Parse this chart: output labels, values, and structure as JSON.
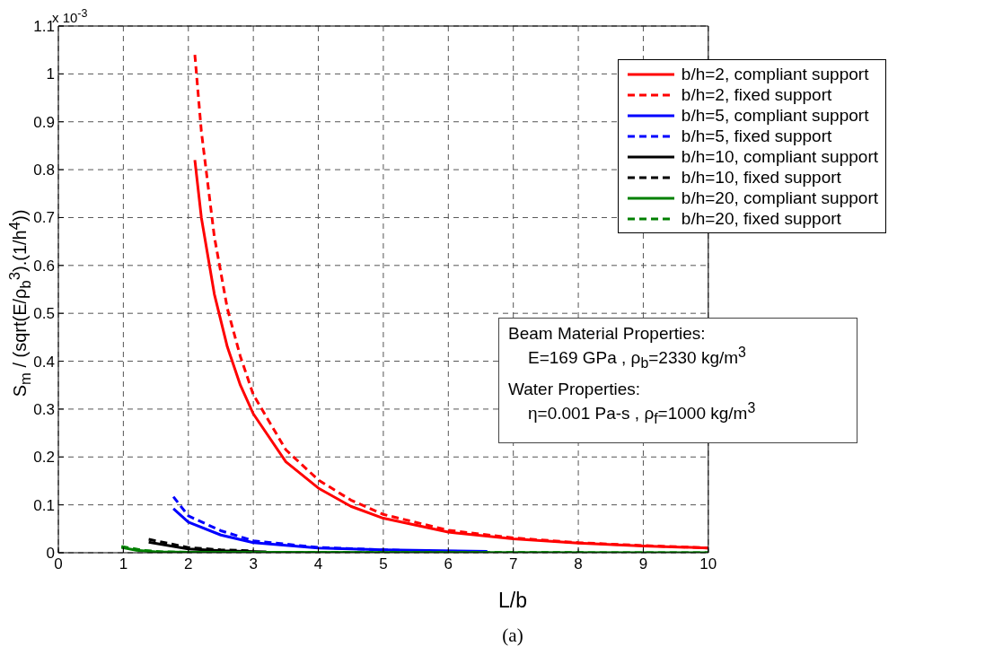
{
  "chart_data": {
    "type": "line",
    "xlabel": "L/b",
    "ylabel": "S$_{m}$ / (sqrt(E/ρ$_{b}$$^{3}$).(1/h$^{4}$))",
    "xlim": [
      0,
      10
    ],
    "xticks": [
      0,
      1,
      2,
      3,
      4,
      5,
      6,
      7,
      8,
      9,
      10
    ],
    "ylim": [
      0,
      1.1
    ],
    "yticks": [
      0,
      0.1,
      0.2,
      0.3,
      0.4,
      0.5,
      0.6,
      0.7,
      0.8,
      0.9,
      1,
      1.1
    ],
    "grid": true,
    "legend": "top right",
    "marker": "none",
    "annotations": [
      "x 10$^{-3}$",
      "Beam Material Properties:",
      "E=169 GPa  ,  ρ$_{b}$=2330 kg/m$^{3}$",
      "Water Properties:",
      "η=0.001 Pa-s  ,  ρ$_{f}$=1000 kg/m$^{3}$",
      "(a)"
    ],
    "series": [
      {
        "name": "b/h=2, compliant support",
        "color": "#ff0000",
        "line_style": "solid",
        "x": [
          2.1,
          2.2,
          2.4,
          2.6,
          2.8,
          3,
          3.5,
          4,
          4.5,
          5,
          6,
          7,
          8,
          9,
          10
        ],
        "values": [
          0.82,
          0.7,
          0.54,
          0.43,
          0.35,
          0.29,
          0.19,
          0.135,
          0.097,
          0.072,
          0.043,
          0.029,
          0.02,
          0.014,
          0.01
        ]
      },
      {
        "name": "b/h=2, fixed support",
        "color": "#ff0000",
        "line_style": "dashed",
        "x": [
          2.1,
          2.2,
          2.4,
          2.6,
          2.8,
          3,
          3.5,
          4,
          4.5,
          5,
          6,
          7,
          8,
          9,
          10
        ],
        "values": [
          1.04,
          0.88,
          0.66,
          0.51,
          0.41,
          0.33,
          0.215,
          0.152,
          0.11,
          0.08,
          0.047,
          0.031,
          0.021,
          0.015,
          0.01
        ]
      },
      {
        "name": "b/h=5, compliant support",
        "color": "#0000ff",
        "line_style": "solid",
        "x": [
          1.77,
          2,
          2.5,
          3,
          4,
          5,
          6.6
        ],
        "values": [
          0.092,
          0.064,
          0.037,
          0.021,
          0.01,
          0.006,
          0.003
        ]
      },
      {
        "name": "b/h=5, fixed support",
        "color": "#0000ff",
        "line_style": "dashed",
        "x": [
          1.77,
          2,
          2.5,
          3,
          4,
          5,
          5.3
        ],
        "values": [
          0.117,
          0.077,
          0.046,
          0.025,
          0.011,
          0.006,
          0.005
        ]
      },
      {
        "name": "b/h=10, compliant support",
        "color": "#000000",
        "line_style": "solid",
        "x": [
          1.39,
          2,
          2.5,
          3.2
        ],
        "values": [
          0.022,
          0.008,
          0.004,
          0.002
        ]
      },
      {
        "name": "b/h=10, fixed support",
        "color": "#000000",
        "line_style": "dashed",
        "x": [
          1.39,
          2,
          2.5,
          3
        ],
        "values": [
          0.028,
          0.011,
          0.006,
          0.004
        ]
      },
      {
        "name": "b/h=20, compliant support",
        "color": "#008000",
        "line_style": "solid",
        "x": [
          0.97,
          1.2,
          1.5,
          2,
          10
        ],
        "values": [
          0.011,
          0.005,
          0.002,
          0.001,
          0
        ]
      },
      {
        "name": "b/h=20, fixed support",
        "color": "#008000",
        "line_style": "dashed",
        "x": [
          0.97,
          1.3,
          1.6,
          2,
          10
        ],
        "values": [
          0.013,
          0.005,
          0.002,
          0.001,
          0
        ]
      }
    ]
  }
}
